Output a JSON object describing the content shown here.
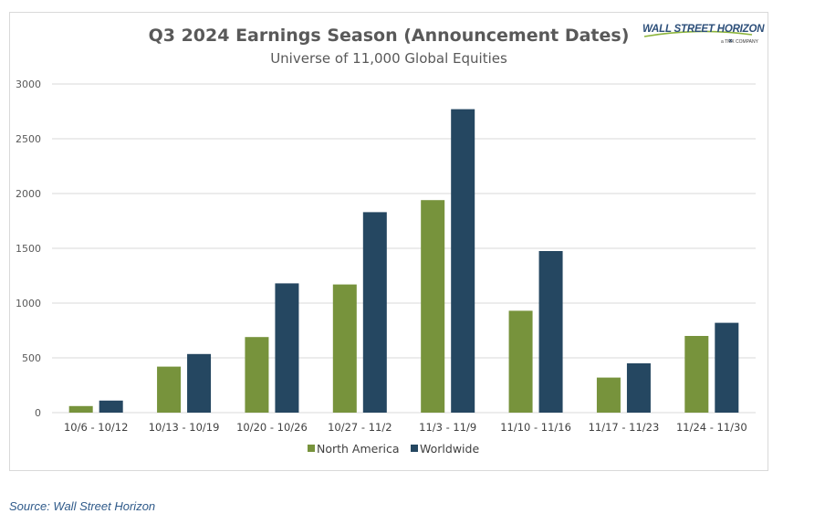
{
  "title": "Q3 2024 Earnings Season (Announcement Dates)",
  "subtitle": "Universe of 11,000 Global Equities",
  "logo": {
    "main": "WALL STREET HORIZON",
    "sub": "a TMX COMPANY"
  },
  "source": "Source: Wall Street Horizon",
  "colors": {
    "north_america": "#77933c",
    "worldwide": "#254761",
    "grid": "#d9d9d9"
  },
  "chart_data": {
    "type": "bar",
    "categories": [
      "10/6 - 10/12",
      "10/13 - 10/19",
      "10/20 - 10/26",
      "10/27 - 11/2",
      "11/3 - 11/9",
      "11/10 - 11/16",
      "11/17 - 11/23",
      "11/24 - 11/30"
    ],
    "series": [
      {
        "name": "North America",
        "values": [
          60,
          420,
          690,
          1170,
          1940,
          930,
          320,
          700
        ]
      },
      {
        "name": "Worldwide",
        "values": [
          110,
          535,
          1180,
          1830,
          2770,
          1475,
          450,
          820
        ]
      }
    ],
    "ylim": [
      0,
      3000
    ],
    "yticks": [
      0,
      500,
      1000,
      1500,
      2000,
      2500,
      3000
    ],
    "grid": true,
    "legend": "bottom"
  }
}
